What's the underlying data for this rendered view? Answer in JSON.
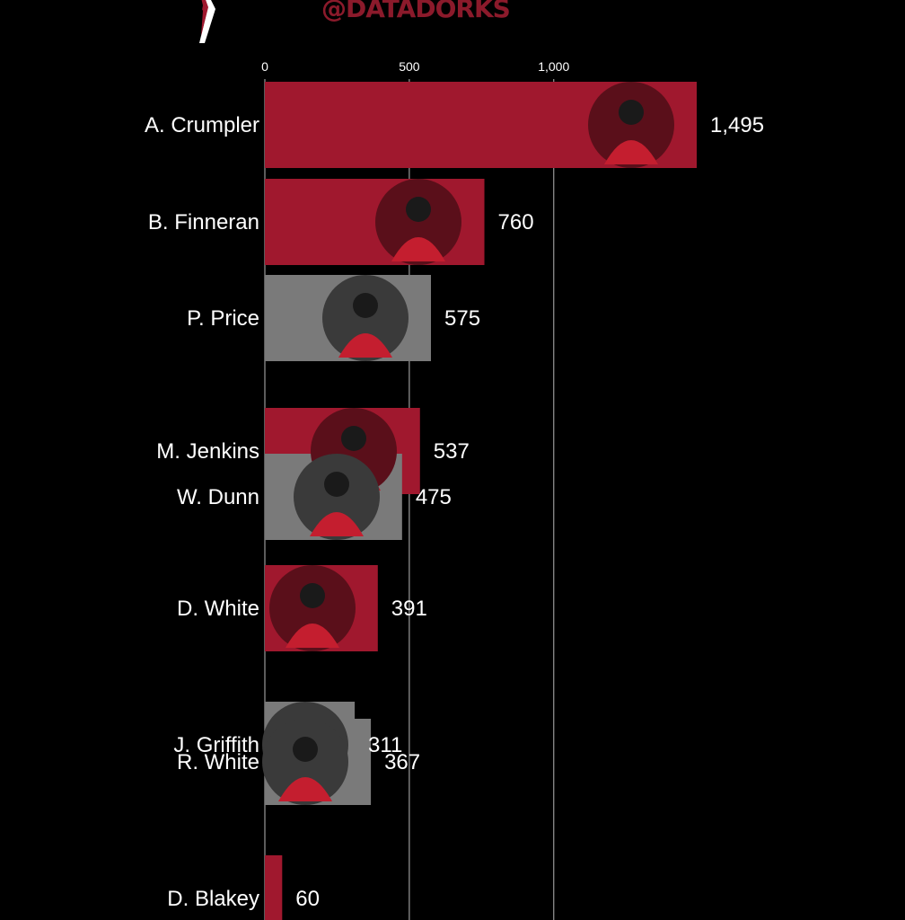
{
  "watermark": "@DATADORKS",
  "colors": {
    "background": "#000000",
    "primary_bar": "#a0182e",
    "secondary_bar": "#7a7a7a",
    "grid": "#9a9a9a",
    "text": "#ffffff",
    "watermark": "#8b1a2b"
  },
  "chart_data": {
    "type": "bar",
    "orientation": "horizontal",
    "title": "",
    "xlabel": "",
    "ylabel": "",
    "xlim": [
      0,
      1495
    ],
    "x_ticks": [
      0,
      500,
      1000
    ],
    "x_tick_labels": [
      "0",
      "500",
      "1,000"
    ],
    "grid": true,
    "legend": "none",
    "bars": [
      {
        "category": "A. Crumpler",
        "value": 1495,
        "value_label": "1,495",
        "color": "#a0182e"
      },
      {
        "category": "B. Finneran",
        "value": 760,
        "value_label": "760",
        "color": "#a0182e"
      },
      {
        "category": "P. Price",
        "value": 575,
        "value_label": "575",
        "color": "#7a7a7a"
      },
      {
        "category": "M. Jenkins",
        "value": 537,
        "value_label": "537",
        "color": "#a0182e"
      },
      {
        "category": "W. Dunn",
        "value": 475,
        "value_label": "475",
        "color": "#7a7a7a"
      },
      {
        "category": "D. White",
        "value": 391,
        "value_label": "391",
        "color": "#a0182e"
      },
      {
        "category": "J. Griffith",
        "value": 311,
        "value_label": "311",
        "color": "#7a7a7a"
      },
      {
        "category": "R. White",
        "value": 367,
        "value_label": "367",
        "color": "#7a7a7a"
      },
      {
        "category": "D. Blakey",
        "value": 60,
        "value_label": "60",
        "color": "#a0182e"
      }
    ]
  }
}
